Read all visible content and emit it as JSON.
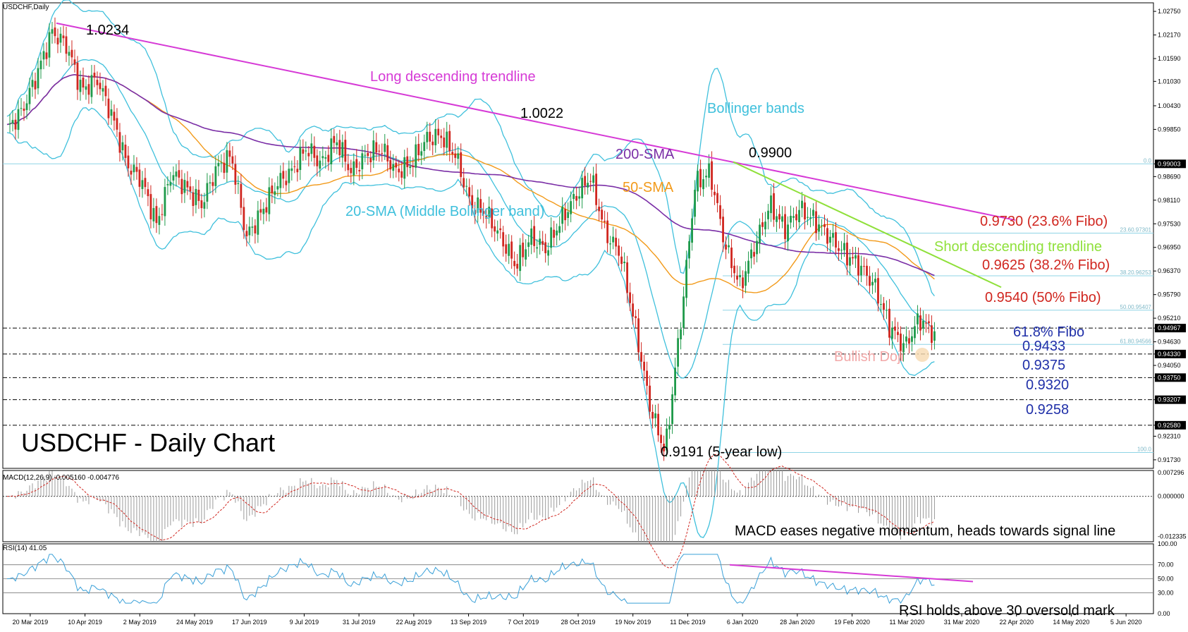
{
  "chart_data": {
    "type": "candlestick",
    "symbol_label": "USDCHF,Daily",
    "title": "USDCHF - Daily Chart",
    "colors": {
      "bull": "#1f9a4a",
      "bear": "#d0261f",
      "bollinger": "#3fc0dc",
      "sma50": "#f29a1a",
      "sma200": "#7a2ea6",
      "long_trendline": "#d63ad6",
      "short_trendline": "#8fe03a",
      "fibo": "#8fd4e6",
      "macd_hist": "#9a9a9a",
      "macd_signal": "#d0261f",
      "rsi": "#3aa0d8"
    },
    "price_axis": {
      "ticks": [
        "1.02750",
        "1.02170",
        "1.01590",
        "1.01030",
        "1.00430",
        "0.99850",
        "0.99003",
        "0.98690",
        "0.98110",
        "0.97530",
        "0.96950",
        "0.96370",
        "0.95790",
        "0.95210",
        "0.94967",
        "0.94630",
        "0.94330",
        "0.94050",
        "0.93750",
        "0.93207",
        "0.92580",
        "0.92310",
        "0.91730"
      ],
      "range": [
        0.9152,
        1.0296
      ]
    },
    "x_axis_labels": [
      "20 Mar 2019",
      "10 Apr 2019",
      "2 May 2019",
      "24 May 2019",
      "17 Jun 2019",
      "9 Jul 2019",
      "31 Jul 2019",
      "22 Aug 2019",
      "13 Sep 2019",
      "7 Oct 2019",
      "28 Oct 2019",
      "19 Nov 2019",
      "11 Dec 2019",
      "6 Jan 2020",
      "28 Jan 2020",
      "19 Feb 2020",
      "11 Mar 2020",
      "31 Mar 2020",
      "22 Apr 2020",
      "14 May 2020",
      "5 Jun 2020"
    ],
    "close_path": [
      0.9985,
      1.003,
      1.012,
      1.0225,
      1.019,
      1.008,
      1.011,
      1.002,
      0.99,
      0.986,
      0.975,
      0.988,
      0.984,
      0.98,
      0.989,
      0.992,
      0.972,
      0.978,
      0.985,
      0.988,
      0.994,
      0.99,
      0.996,
      0.988,
      0.992,
      0.994,
      0.988,
      0.99,
      0.996,
      0.997,
      0.992,
      0.98,
      0.978,
      0.972,
      0.965,
      0.972,
      0.969,
      0.976,
      0.982,
      0.987,
      0.973,
      0.968,
      0.95,
      0.93,
      0.9191,
      0.95,
      0.985,
      0.988,
      0.97,
      0.96,
      0.97,
      0.98,
      0.974,
      0.979,
      0.976,
      0.972,
      0.968,
      0.965,
      0.96,
      0.95,
      0.945,
      0.952,
      0.948
    ],
    "annotations": {
      "high_1": "1.0234",
      "high_2": "1.0022",
      "high_3": "0.9900",
      "low_1": "0.9191 (5-year low)",
      "long_trendline": "Long descending trendline",
      "bollinger": "Bollinger bands",
      "sma200": "200-SMA",
      "sma50": "50-SMA",
      "sma20": "20-SMA (Middle Bollinger band)",
      "short_trendline": "Short descending trendline",
      "fib_236": "0.9730 (23.6% Fibo)",
      "fib_382": "0.9625 (38.2% Fibo)",
      "fib_50": "0.9540 (50% Fibo)",
      "fib_618": "61.8% Fibo",
      "level_0943": "0.9433",
      "level_0937": "0.9375",
      "level_0932": "0.9320",
      "level_0925": "0.9258",
      "bullish_doji": "Bullish Doji"
    },
    "fibo_labels": {
      "f0": "0.0",
      "f236": "23.60.97301",
      "f382": "38.20.96253",
      "f50": "50.00.95407",
      "f618": "61.80.94566",
      "f100": "100.0"
    },
    "macd": {
      "label": "MACD(12,26,9) -0.005160 -0.004776",
      "ticks": [
        "0.007296",
        "0.000000",
        "-0.012335"
      ],
      "annotation": "MACD eases negative momentum, heads towards signal line",
      "range": [
        -0.014,
        0.008
      ]
    },
    "rsi": {
      "label": "RSI(14) 41.05",
      "ticks": [
        "100.00",
        "70.00",
        "50.00",
        "30.00",
        "0.00"
      ],
      "annotation": "RSI holds above 30 oversold mark",
      "levels": [
        70,
        50,
        30
      ],
      "last": 41.05
    }
  }
}
